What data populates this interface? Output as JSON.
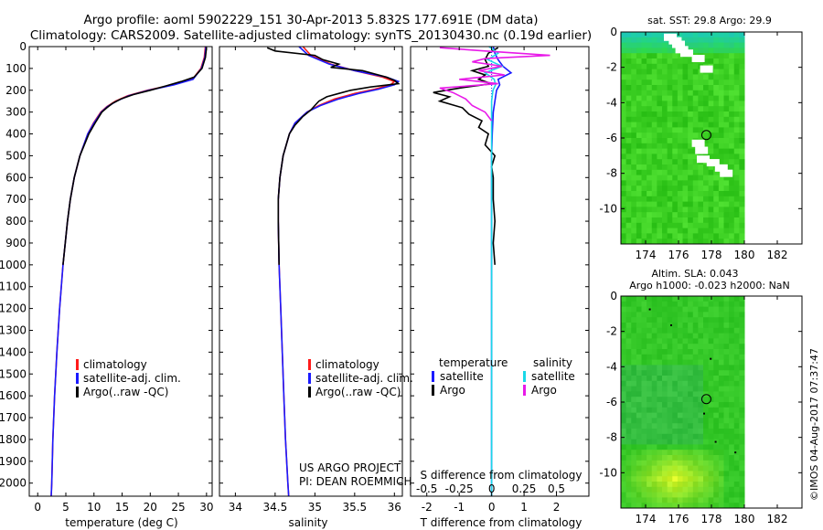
{
  "title_line1": "Argo profile: aoml 5902229_151 30-Apr-2013 5.832S 177.691E (DM data)",
  "title_line2": "Climatology: CARS2009. Satellite-adjusted climatology: synTS_20130430.nc (0.19d earlier)",
  "colors": {
    "climatology": "#ff1a1a",
    "satellite": "#1a1aff",
    "argo": "#000000",
    "salinity_satellite": "#1ad8e8",
    "salinity_argo": "#e81ae8",
    "map_land": "#ffffff",
    "map_water_top": "#20c8a0",
    "map_green": "#3cc828"
  },
  "timestamp": "©IMOS 04-Aug-2017 07:37:47",
  "chart_data": [
    {
      "id": "temperature",
      "type": "line",
      "xlabel": "temperature (deg C)",
      "ylabel": "",
      "xlim": [
        -1.5,
        31
      ],
      "ylim": [
        2060,
        0
      ],
      "xticks": [
        0,
        5,
        10,
        15,
        20,
        25,
        30
      ],
      "yticks": [
        0,
        100,
        200,
        300,
        400,
        500,
        600,
        700,
        800,
        900,
        1000,
        1100,
        1200,
        1300,
        1400,
        1500,
        1600,
        1700,
        1800,
        1900,
        2000
      ],
      "legend": [
        "climatology",
        "satellite-adj. clim.",
        "Argo(..raw -QC)"
      ],
      "series": [
        {
          "name": "climatology",
          "color_key": "climatology",
          "depth": [
            0,
            50,
            100,
            150,
            175,
            200,
            225,
            250,
            275,
            300,
            350,
            400,
            500,
            600,
            700,
            800,
            1000,
            1200,
            1400,
            1600,
            1800,
            2000,
            2060
          ],
          "values": [
            29.8,
            29.6,
            29.0,
            27.5,
            24,
            19.5,
            16,
            13.8,
            12.3,
            11.2,
            9.9,
            8.9,
            7.5,
            6.5,
            5.8,
            5.3,
            4.5,
            3.9,
            3.4,
            3.0,
            2.7,
            2.5,
            2.4
          ]
        },
        {
          "name": "satellite-adj. clim.",
          "color_key": "satellite",
          "depth": [
            0,
            50,
            100,
            150,
            175,
            200,
            225,
            250,
            275,
            300,
            350,
            400,
            500,
            600,
            700,
            800,
            1000,
            1200,
            1400,
            1600,
            1800,
            2000,
            2060
          ],
          "values": [
            29.9,
            29.7,
            29.1,
            27.6,
            24.2,
            19.7,
            16.2,
            14.0,
            12.4,
            11.3,
            10.0,
            8.9,
            7.5,
            6.5,
            5.8,
            5.3,
            4.5,
            3.9,
            3.4,
            3.0,
            2.7,
            2.5,
            2.4
          ]
        },
        {
          "name": "Argo(..raw -QC)",
          "color_key": "argo",
          "depth": [
            5,
            50,
            100,
            140,
            160,
            180,
            200,
            220,
            240,
            260,
            280,
            300,
            350,
            400,
            500,
            600,
            700,
            800,
            1000
          ],
          "values": [
            30.0,
            29.8,
            29.2,
            27.8,
            25.5,
            22.8,
            20.0,
            17.0,
            14.8,
            13.3,
            12.3,
            11.4,
            10.2,
            9.1,
            7.5,
            6.5,
            5.8,
            5.3,
            4.5
          ]
        }
      ]
    },
    {
      "id": "salinity",
      "type": "line",
      "xlabel": "salinity",
      "ylabel": "",
      "xlim": [
        33.8,
        36.1
      ],
      "ylim": [
        2060,
        0
      ],
      "xticks": [
        34,
        34.5,
        35,
        35.5,
        36
      ],
      "legend": [
        "climatology",
        "satellite-adj. clim.",
        "Argo(..raw -QC)"
      ],
      "annotations": [
        "US ARGO PROJECT",
        "PI: DEAN ROEMMICH"
      ],
      "series": [
        {
          "name": "climatology",
          "color_key": "climatology",
          "depth": [
            0,
            40,
            80,
            110,
            140,
            160,
            175,
            195,
            215,
            240,
            270,
            300,
            350,
            400,
            500,
            600,
            700,
            800,
            1000,
            1200,
            1400,
            1600,
            1800,
            2000,
            2060
          ],
          "values": [
            34.85,
            34.95,
            35.2,
            35.5,
            35.85,
            36.0,
            35.95,
            35.75,
            35.5,
            35.25,
            35.05,
            34.9,
            34.75,
            34.68,
            34.6,
            34.56,
            34.54,
            34.54,
            34.55,
            34.57,
            34.59,
            34.61,
            34.63,
            34.66,
            34.67
          ]
        },
        {
          "name": "satellite-adj. clim.",
          "color_key": "satellite",
          "depth": [
            0,
            40,
            80,
            110,
            140,
            160,
            175,
            195,
            215,
            240,
            270,
            300,
            350,
            400,
            500,
            600,
            700,
            800,
            1000,
            1200,
            1400,
            1600,
            1800,
            2000,
            2060
          ],
          "values": [
            34.8,
            34.92,
            35.18,
            35.5,
            35.9,
            36.05,
            36.0,
            35.8,
            35.55,
            35.3,
            35.07,
            34.9,
            34.75,
            34.68,
            34.6,
            34.56,
            34.54,
            34.54,
            34.55,
            34.57,
            34.59,
            34.61,
            34.63,
            34.66,
            34.67
          ]
        },
        {
          "name": "Argo(..raw -QC)",
          "color_key": "argo",
          "depth": [
            5,
            20,
            40,
            60,
            80,
            95,
            110,
            125,
            140,
            155,
            170,
            185,
            200,
            215,
            230,
            250,
            270,
            290,
            320,
            360,
            400,
            500,
            600,
            700,
            800,
            1000
          ],
          "values": [
            34.4,
            34.5,
            35.0,
            35.1,
            35.3,
            35.2,
            35.6,
            35.75,
            35.9,
            36.0,
            36.05,
            35.7,
            35.45,
            35.3,
            35.15,
            35.05,
            35.0,
            34.95,
            34.85,
            34.75,
            34.68,
            34.6,
            34.56,
            34.54,
            34.54,
            34.55
          ]
        }
      ]
    },
    {
      "id": "differences",
      "type": "line",
      "xlabel": "T difference from climatology",
      "xlabel2": "S difference from climatology",
      "xlim": [
        -2.5,
        3.0
      ],
      "x2lim": [
        -0.625,
        0.75
      ],
      "ylim": [
        2060,
        0
      ],
      "xticks": [
        -2,
        -1,
        0,
        1,
        2
      ],
      "x2ticks": [
        "-0.5",
        "-0.25",
        "0",
        "0.25",
        "0.5"
      ],
      "x2tick_values": [
        -0.5,
        -0.25,
        0,
        0.25,
        0.5
      ],
      "legend_temperature_title": "temperature",
      "legend_salinity_title": "salinity",
      "legend_temperature": [
        "satellite",
        "Argo"
      ],
      "legend_salinity": [
        "satellite",
        "Argo"
      ],
      "series": [
        {
          "name": "temperature satellite",
          "color_key": "satellite",
          "depth": [
            0,
            30,
            60,
            90,
            120,
            150,
            175,
            200,
            250,
            300,
            400,
            500,
            700,
            1000,
            1500,
            2060
          ],
          "values": [
            0.05,
            0.1,
            0.2,
            0.35,
            0.6,
            0.2,
            0.25,
            0.15,
            0.1,
            0.05,
            0.02,
            0.0,
            0.0,
            0.0,
            0.0,
            0.0
          ]
        },
        {
          "name": "temperature Argo",
          "color_key": "argo",
          "depth": [
            5,
            30,
            60,
            90,
            110,
            130,
            150,
            170,
            190,
            210,
            230,
            250,
            280,
            310,
            340,
            370,
            400,
            450,
            500,
            550,
            600,
            700,
            800,
            900,
            1000
          ],
          "values": [
            0.2,
            -0.1,
            -0.2,
            -0.1,
            -0.6,
            -0.2,
            -0.4,
            0.0,
            -1.0,
            -1.8,
            -1.3,
            -1.6,
            -0.9,
            -0.7,
            -0.3,
            -0.4,
            -0.1,
            -0.2,
            0.1,
            0.0,
            0.05,
            0.05,
            0.1,
            0.05,
            0.1
          ]
        },
        {
          "name": "salinity satellite",
          "color_key": "salinity_satellite",
          "depth": [
            0,
            30,
            60,
            90,
            120,
            150,
            175,
            200,
            250,
            300,
            400,
            600,
            1000,
            1500,
            2060
          ],
          "values": [
            -0.02,
            0.05,
            -0.03,
            0.08,
            -0.05,
            0.02,
            0.03,
            0.01,
            0.0,
            0.0,
            0.0,
            0.0,
            0.0,
            0.0,
            0.0
          ]
        },
        {
          "name": "salinity Argo",
          "color_key": "salinity_argo",
          "depth": [
            5,
            20,
            40,
            55,
            70,
            90,
            110,
            130,
            150,
            170,
            190,
            210,
            240,
            270,
            300,
            340
          ],
          "values": [
            -0.4,
            -0.05,
            0.45,
            -0.05,
            -0.15,
            0.08,
            -0.1,
            0.1,
            -0.25,
            0.05,
            -0.4,
            -0.3,
            -0.2,
            -0.15,
            -0.05,
            0.0
          ]
        }
      ]
    },
    {
      "id": "sst_map",
      "type": "heatmap",
      "title": "sat. SST: 29.8 Argo: 29.9",
      "xlim": [
        172.5,
        183.5
      ],
      "ylim": [
        -12,
        0
      ],
      "xticks": [
        174,
        176,
        178,
        180,
        182
      ],
      "yticks": [
        0,
        -2,
        -4,
        -6,
        -8,
        -10
      ],
      "data_east_limit": 180,
      "marker": {
        "lon": 177.691,
        "lat": -5.832
      }
    },
    {
      "id": "sla_map",
      "type": "heatmap",
      "title_line1": "Altim. SLA: 0.043",
      "title_line2": "Argo h1000: -0.023 h2000: NaN",
      "xlim": [
        172.5,
        183.5
      ],
      "ylim": [
        -12,
        0
      ],
      "xticks": [
        174,
        176,
        178,
        180,
        182
      ],
      "yticks": [
        0,
        -2,
        -4,
        -6,
        -8,
        -10
      ],
      "data_east_limit": 180,
      "marker": {
        "lon": 177.691,
        "lat": -5.832
      }
    }
  ]
}
